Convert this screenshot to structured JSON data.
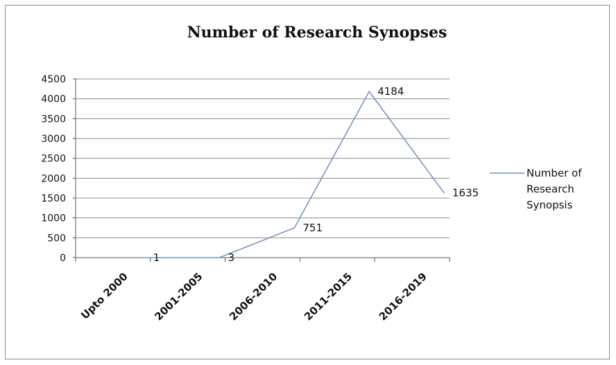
{
  "chart_data": {
    "type": "line",
    "title": "Number of Research Synopses",
    "categories": [
      "Upto 2000",
      "2001-2005",
      "2006-2010",
      "2011-2015",
      "2016-2019"
    ],
    "series": [
      {
        "name": "Number of Research Synopsis",
        "values": [
          1,
          3,
          751,
          4184,
          1635
        ],
        "color": "#6f8fbf"
      }
    ],
    "data_labels": [
      "1",
      "3",
      "751",
      "4184",
      "1635"
    ],
    "ylim": [
      0,
      4500
    ],
    "yticks": [
      0,
      500,
      1000,
      1500,
      2000,
      2500,
      3000,
      3500,
      4000,
      4500
    ],
    "grid": true,
    "legend_position": "right",
    "legend_lines": [
      "Number of",
      "Research",
      "Synopsis"
    ]
  }
}
